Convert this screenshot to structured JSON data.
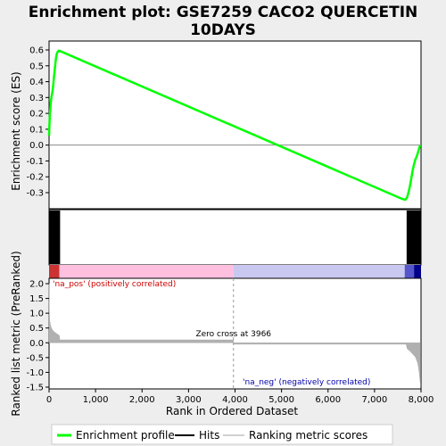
{
  "chart_data": {
    "type": "line",
    "title_line1": "Enrichment plot: GSE7259 CACO2 QUERCETIN",
    "title_line2": "10DAYS",
    "es_ylabel": "Enrichment score (ES)",
    "rank_ylabel": "Ranked list metric (PreRanked)",
    "xlabel": "Rank in Ordered Dataset",
    "x_range": [
      0,
      8000
    ],
    "es_ylim": [
      -0.4,
      0.6
    ],
    "rank_ylim": [
      -1.5,
      2.0
    ],
    "x_ticks": [
      0,
      1000,
      2000,
      3000,
      4000,
      5000,
      6000,
      7000,
      8000
    ],
    "x_tick_labels": [
      "0",
      "1,000",
      "2,000",
      "3,000",
      "4,000",
      "5,000",
      "6,000",
      "7,000",
      "8,000"
    ],
    "es_ticks": [
      -0.3,
      -0.2,
      -0.1,
      0.0,
      0.1,
      0.2,
      0.3,
      0.4,
      0.5,
      0.6
    ],
    "es_tick_labels": [
      "-0.3",
      "-0.2",
      "-0.1",
      "0.0",
      "0.1",
      "0.2",
      "0.3",
      "0.4",
      "0.5",
      "0.6"
    ],
    "rank_ticks": [
      -1.5,
      -1.0,
      -0.5,
      0.0,
      0.5,
      1.0,
      1.5,
      2.0
    ],
    "rank_tick_labels": [
      "-1.5",
      "-1.0",
      "-0.5",
      "0.0",
      "0.5",
      "1.0",
      "1.5",
      "2.0"
    ],
    "series": [
      {
        "name": "Enrichment profile",
        "color": "#00ff00",
        "x": [
          0,
          10,
          20,
          35,
          50,
          70,
          90,
          110,
          130,
          150,
          170,
          190,
          210,
          230,
          7600,
          7660,
          7700,
          7730,
          7760,
          7790,
          7820,
          7850,
          7880,
          7910,
          7940,
          7960,
          7980
        ],
        "y": [
          0.06,
          0.14,
          0.2,
          0.26,
          0.3,
          0.33,
          0.38,
          0.44,
          0.5,
          0.55,
          0.58,
          0.59,
          0.595,
          0.594,
          -0.34,
          -0.345,
          -0.33,
          -0.3,
          -0.26,
          -0.21,
          -0.16,
          -0.12,
          -0.09,
          -0.07,
          -0.04,
          -0.02,
          0.0
        ]
      }
    ],
    "hits_pos": {
      "from": 0,
      "to": 230
    },
    "hits_neg": {
      "from": 7700,
      "to": 7990
    },
    "ranking_metric": {
      "name": "Ranking metric scores",
      "color": "#b0b0b0",
      "x": [
        0,
        5,
        15,
        30,
        50,
        80,
        120,
        170,
        220,
        230,
        3966,
        3967,
        7680,
        7700,
        7760,
        7820,
        7880,
        7930,
        7960,
        7990
      ],
      "y": [
        2.0,
        1.1,
        0.75,
        0.6,
        0.5,
        0.42,
        0.36,
        0.3,
        0.25,
        0.1,
        0.1,
        -0.05,
        -0.05,
        -0.2,
        -0.28,
        -0.38,
        -0.48,
        -0.7,
        -1.0,
        -1.45
      ]
    },
    "zero_cross": 3966,
    "zero_cross_label": "Zero cross at 3966",
    "pos_label": "'na_pos' (positively correlated)",
    "neg_label": "'na_neg' (negatively correlated)",
    "legend": [
      {
        "label": "Enrichment profile",
        "color": "#00ff00"
      },
      {
        "label": "Hits",
        "color": "#000000"
      },
      {
        "label": "Ranking metric scores",
        "color": "#c0c0c0"
      }
    ]
  }
}
